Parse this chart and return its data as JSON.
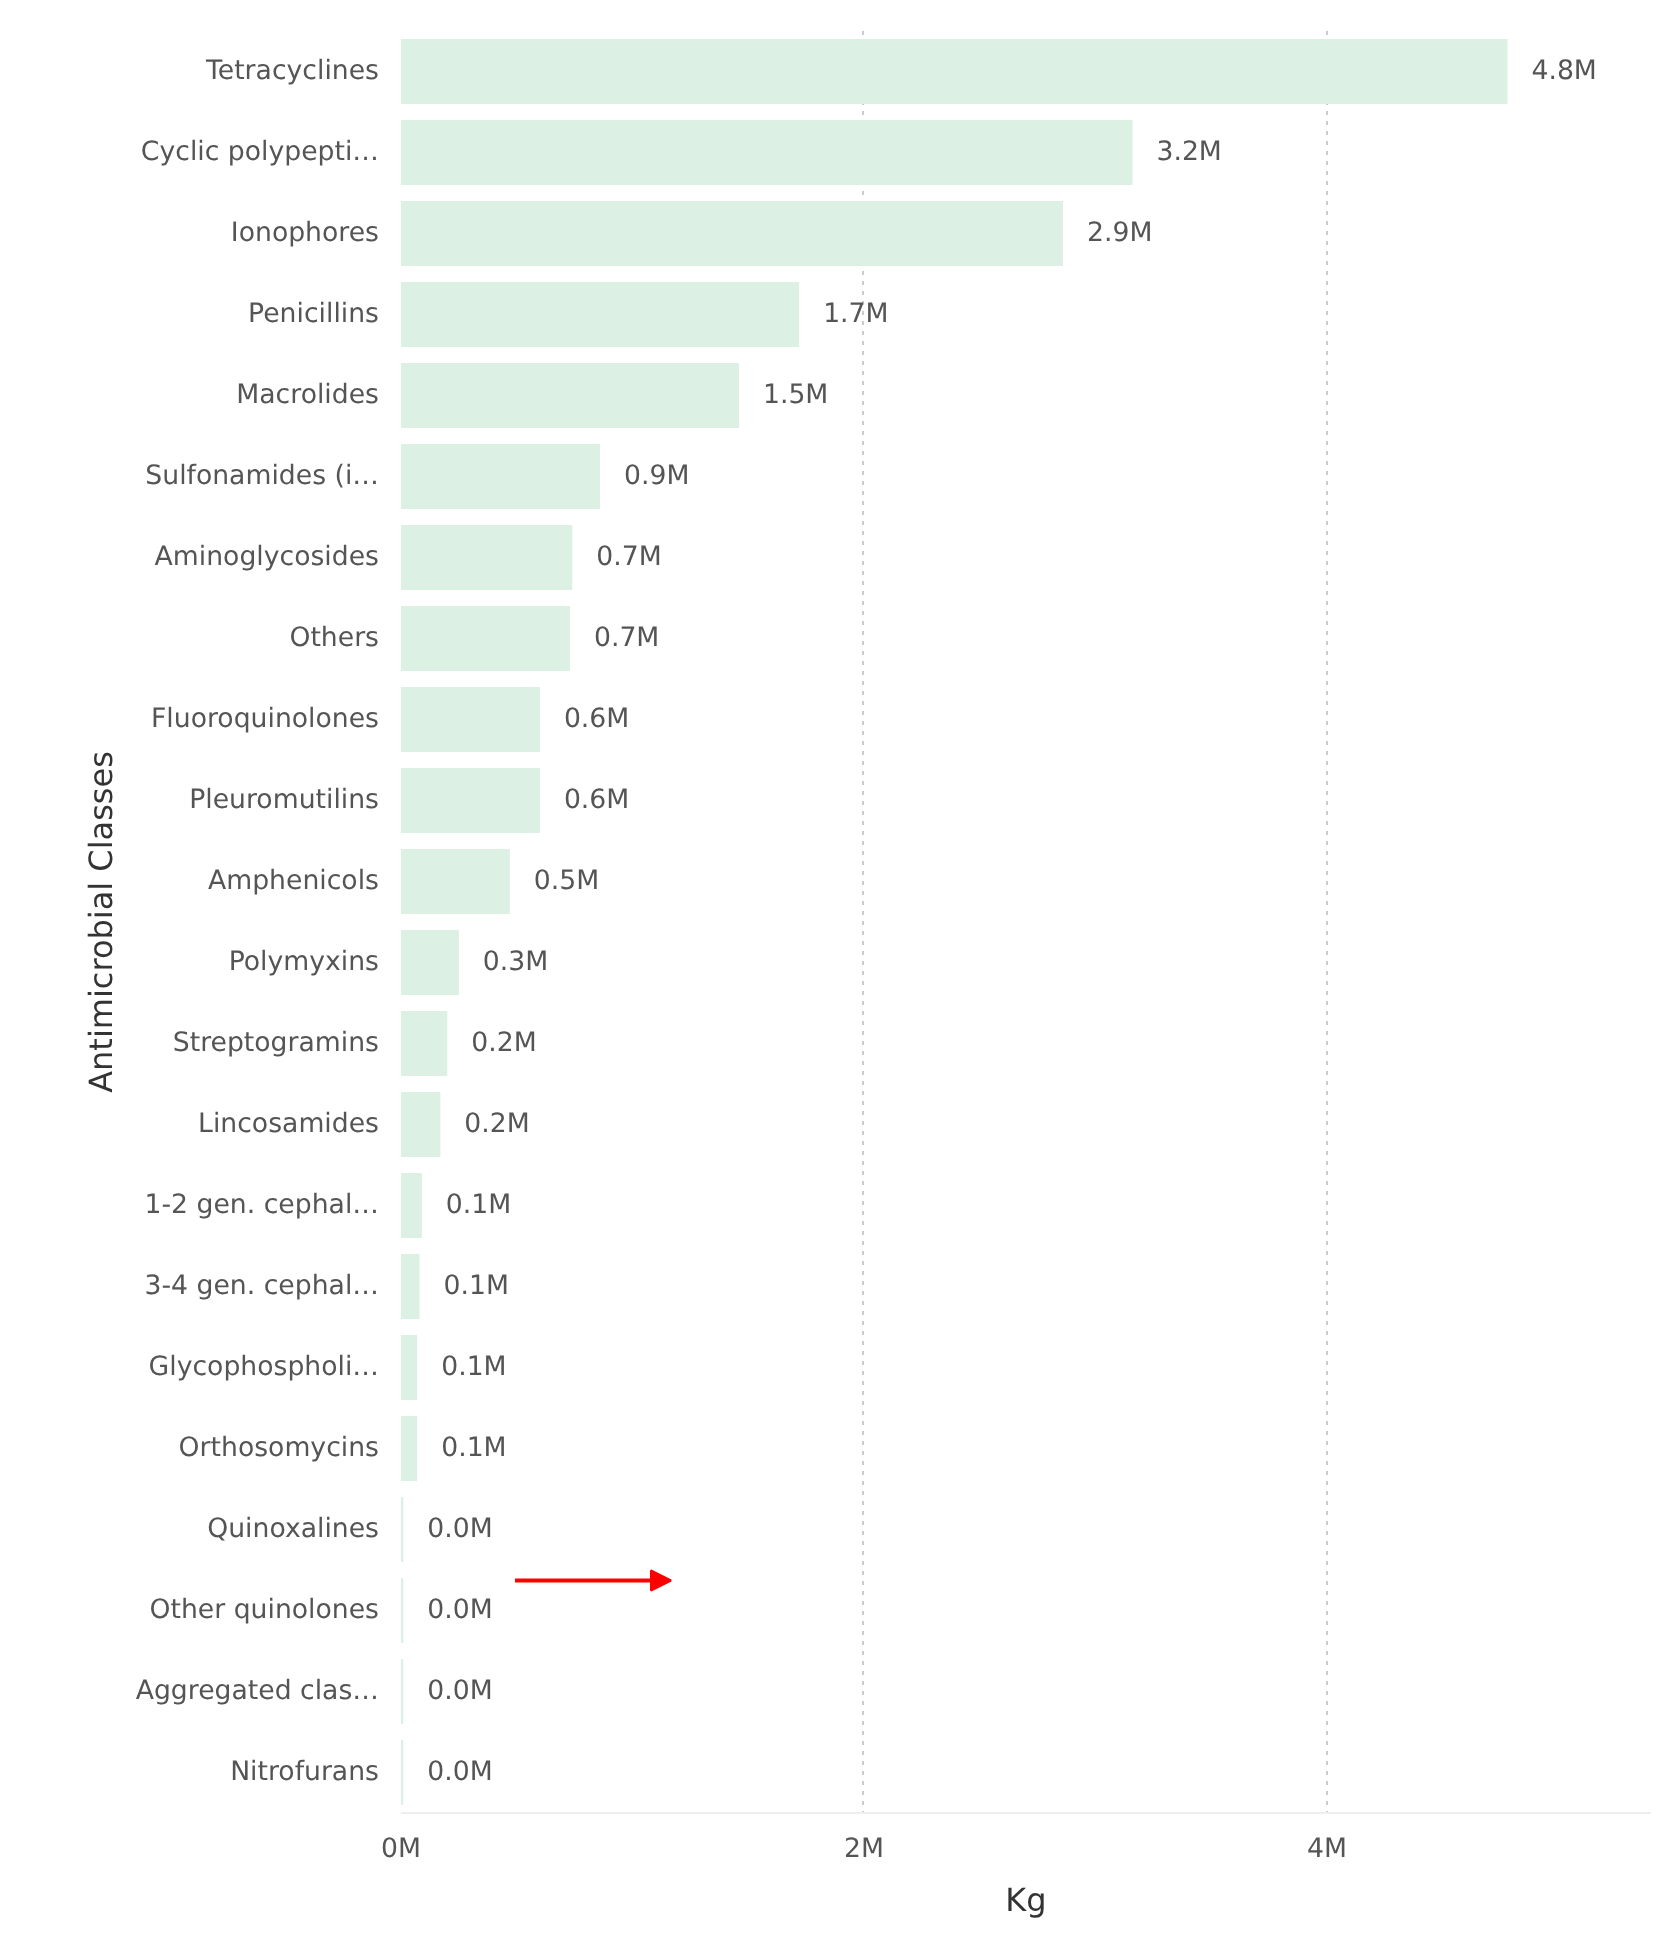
{
  "chart_data": {
    "type": "bar",
    "orientation": "horizontal",
    "xlabel": "Kg",
    "ylabel": "Antimicrobial Classes",
    "categories": [
      "Tetracyclines",
      "Cyclic polypepti…",
      "Ionophores",
      "Penicillins",
      "Macrolides",
      "Sulfonamides (i…",
      "Aminoglycosides",
      "Others",
      "Fluoroquinolones",
      "Pleuromutilins",
      "Amphenicols",
      "Polymyxins",
      "Streptogramins",
      "Lincosamides",
      "1-2 gen. cephal…",
      "3-4 gen. cephal…",
      "Glycophospholi…",
      "Orthosomycins",
      "Quinoxalines",
      "Other quinolones",
      "Aggregated clas…",
      "Nitrofurans"
    ],
    "values": [
      4.78,
      3.16,
      2.86,
      1.72,
      1.46,
      0.86,
      0.74,
      0.73,
      0.6,
      0.6,
      0.47,
      0.25,
      0.2,
      0.17,
      0.09,
      0.08,
      0.07,
      0.07,
      0.01,
      0.01,
      0.01,
      0.01
    ],
    "value_labels": [
      "4.8M",
      "3.2M",
      "2.9M",
      "1.7M",
      "1.5M",
      "0.9M",
      "0.7M",
      "0.7M",
      "0.6M",
      "0.6M",
      "0.5M",
      "0.3M",
      "0.2M",
      "0.2M",
      "0.1M",
      "0.1M",
      "0.1M",
      "0.1M",
      "0.0M",
      "0.0M",
      "0.0M",
      "0.0M"
    ],
    "color": "#dcf0e4",
    "xlim": [
      0,
      5.4
    ],
    "xticks": [
      {
        "value": 0,
        "label": "0M"
      },
      {
        "value": 2,
        "label": "2M"
      },
      {
        "value": 4,
        "label": "4M"
      }
    ],
    "grid": "x"
  }
}
